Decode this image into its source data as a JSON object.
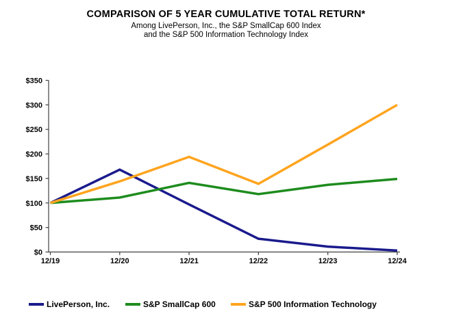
{
  "header": {
    "title": "COMPARISON OF 5 YEAR CUMULATIVE TOTAL RETURN*",
    "subtitle_line1": "Among LivePerson, Inc., the S&P SmallCap 600 Index",
    "subtitle_line2": "and the S&P 500 Information Technology Index"
  },
  "chart_data": {
    "type": "line",
    "title": "COMPARISON OF 5 YEAR CUMULATIVE TOTAL RETURN*",
    "subtitle": "Among LivePerson, Inc., the S&P SmallCap 600 Index and the S&P 500 Information Technology Index",
    "categories": [
      "12/19",
      "12/20",
      "12/21",
      "12/22",
      "12/23",
      "12/24"
    ],
    "series": [
      {
        "name": "LivePerson, Inc.",
        "color": "#1A1A8C",
        "values": [
          100,
          168,
          97,
          27,
          11,
          3
        ]
      },
      {
        "name": "S&P SmallCap 600",
        "color": "#1E8C1E",
        "values": [
          100,
          111,
          141,
          118,
          137,
          149
        ]
      },
      {
        "name": "S&P 500 Information Technology",
        "color": "#FFA41E",
        "values": [
          100,
          144,
          194,
          139,
          219,
          300
        ]
      }
    ],
    "xlabel": "",
    "ylabel": "",
    "ylim": [
      0,
      350
    ],
    "y_ticks": [
      0,
      50,
      100,
      150,
      200,
      250,
      300,
      350
    ],
    "y_tick_labels": [
      "$0",
      "$50",
      "$100",
      "$150",
      "$200",
      "$250",
      "$300",
      "$350"
    ],
    "grid": false,
    "legend_position": "bottom",
    "axis_color": "#404040"
  }
}
